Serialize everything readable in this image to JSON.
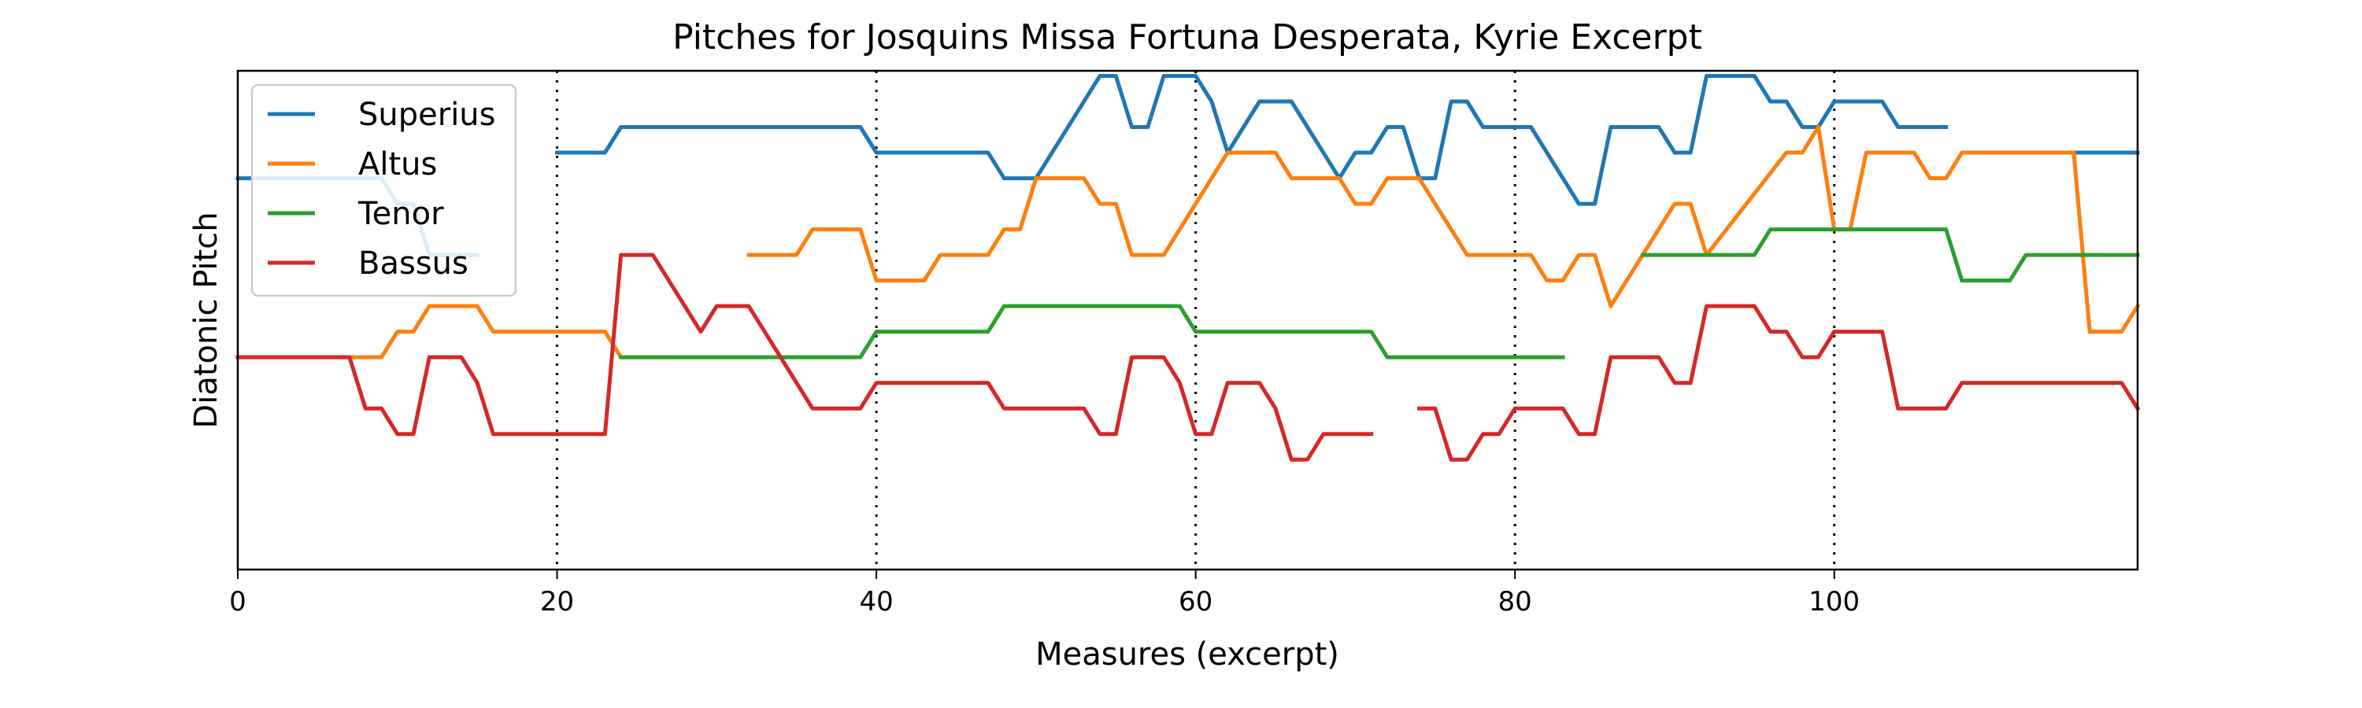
{
  "chart_data": {
    "type": "line",
    "title": "Pitches for Josquins Missa Fortuna Desperata, Kyrie Excerpt",
    "xlabel": "Measures (excerpt)",
    "ylabel": "Diatonic Pitch",
    "xlim": [
      0,
      119
    ],
    "ylim": [
      -6.3,
      13.2
    ],
    "xticks": [
      0,
      20,
      40,
      60,
      80,
      100
    ],
    "yticks_shown": false,
    "vlines": [
      20,
      40,
      60,
      80,
      100
    ],
    "legend": {
      "placement": "top-left",
      "entries": [
        "Superius",
        "Altus",
        "Tenor",
        "Bassus"
      ]
    },
    "series": [
      {
        "name": "Superius",
        "color": "#1f77b4",
        "segments": [
          [
            [
              0,
              9
            ],
            [
              9,
              9
            ],
            [
              10,
              8
            ],
            [
              11,
              8
            ],
            [
              12,
              6
            ],
            [
              15,
              6
            ]
          ],
          [
            [
              20,
              10
            ],
            [
              23,
              10
            ],
            [
              24,
              11
            ],
            [
              39,
              11
            ],
            [
              40,
              10
            ],
            [
              47,
              10
            ],
            [
              48,
              9
            ],
            [
              50,
              9
            ],
            [
              54,
              13
            ],
            [
              55,
              13
            ],
            [
              56,
              11
            ],
            [
              57,
              11
            ],
            [
              58,
              13
            ],
            [
              60,
              13
            ],
            [
              61,
              12
            ],
            [
              62,
              10
            ],
            [
              64,
              12
            ],
            [
              66,
              12
            ],
            [
              69,
              9
            ],
            [
              70,
              10
            ],
            [
              71,
              10
            ],
            [
              72,
              11
            ],
            [
              73,
              11
            ],
            [
              74,
              9
            ],
            [
              75,
              9
            ],
            [
              76,
              12
            ],
            [
              77,
              12
            ],
            [
              78,
              11
            ],
            [
              81,
              11
            ],
            [
              84,
              8
            ],
            [
              85,
              8
            ],
            [
              86,
              11
            ],
            [
              89,
              11
            ],
            [
              90,
              10
            ],
            [
              91,
              10
            ],
            [
              92,
              13
            ],
            [
              95,
              13
            ],
            [
              96,
              12
            ],
            [
              97,
              12
            ],
            [
              98,
              11
            ],
            [
              99,
              11
            ],
            [
              100,
              12
            ],
            [
              103,
              12
            ],
            [
              104,
              11
            ],
            [
              107,
              11
            ]
          ],
          [
            [
              110,
              10
            ],
            [
              119,
              10
            ]
          ]
        ]
      },
      {
        "name": "Altus",
        "color": "#ff7f0e",
        "segments": [
          [
            [
              0,
              2
            ],
            [
              9,
              2
            ],
            [
              10,
              3
            ],
            [
              11,
              3
            ],
            [
              12,
              4
            ],
            [
              15,
              4
            ],
            [
              16,
              3
            ],
            [
              23,
              3
            ],
            [
              24,
              2
            ],
            [
              27,
              2
            ]
          ],
          [
            [
              32,
              6
            ],
            [
              35,
              6
            ],
            [
              36,
              7
            ],
            [
              39,
              7
            ],
            [
              40,
              5
            ],
            [
              43,
              5
            ],
            [
              44,
              6
            ],
            [
              47,
              6
            ],
            [
              48,
              7
            ],
            [
              49,
              7
            ],
            [
              50,
              9
            ],
            [
              53,
              9
            ],
            [
              54,
              8
            ],
            [
              55,
              8
            ],
            [
              56,
              6
            ],
            [
              58,
              6
            ],
            [
              62,
              10
            ],
            [
              65,
              10
            ],
            [
              66,
              9
            ],
            [
              69,
              9
            ],
            [
              70,
              8
            ],
            [
              71,
              8
            ],
            [
              72,
              9
            ],
            [
              74,
              9
            ],
            [
              77,
              6
            ],
            [
              81,
              6
            ],
            [
              82,
              5
            ],
            [
              83,
              5
            ],
            [
              84,
              6
            ],
            [
              85,
              6
            ],
            [
              86,
              4
            ],
            [
              90,
              8
            ],
            [
              91,
              8
            ],
            [
              92,
              6
            ],
            [
              97,
              10
            ],
            [
              98,
              10
            ],
            [
              99,
              11
            ],
            [
              100,
              7
            ],
            [
              101,
              7
            ],
            [
              102,
              10
            ],
            [
              105,
              10
            ],
            [
              106,
              9
            ],
            [
              107,
              9
            ],
            [
              108,
              10
            ],
            [
              115,
              10
            ],
            [
              116,
              3
            ],
            [
              118,
              3
            ],
            [
              119,
              4
            ]
          ]
        ]
      },
      {
        "name": "Tenor",
        "color": "#2ca02c",
        "segments": [
          [
            [
              24,
              2
            ],
            [
              39,
              2
            ],
            [
              40,
              3
            ],
            [
              47,
              3
            ],
            [
              48,
              4
            ],
            [
              59,
              4
            ],
            [
              60,
              3
            ],
            [
              71,
              3
            ],
            [
              72,
              2
            ],
            [
              83,
              2
            ]
          ],
          [
            [
              88,
              6
            ],
            [
              95,
              6
            ],
            [
              96,
              7
            ],
            [
              107,
              7
            ],
            [
              108,
              5
            ],
            [
              111,
              5
            ],
            [
              112,
              6
            ],
            [
              119,
              6
            ]
          ]
        ]
      },
      {
        "name": "Bassus",
        "color": "#d62728",
        "segments": [
          [
            [
              0,
              2
            ],
            [
              7,
              2
            ],
            [
              8,
              0
            ],
            [
              9,
              0
            ],
            [
              10,
              -1
            ],
            [
              11,
              -1
            ],
            [
              12,
              2
            ],
            [
              14,
              2
            ],
            [
              15,
              1
            ],
            [
              16,
              -1
            ],
            [
              23,
              -1
            ],
            [
              24,
              6
            ],
            [
              26,
              6
            ],
            [
              29,
              3
            ],
            [
              30,
              4
            ],
            [
              32,
              4
            ],
            [
              36,
              0
            ],
            [
              39,
              0
            ],
            [
              40,
              1
            ],
            [
              47,
              1
            ],
            [
              48,
              0
            ],
            [
              53,
              0
            ],
            [
              54,
              -1
            ],
            [
              55,
              -1
            ],
            [
              56,
              2
            ],
            [
              58,
              2
            ],
            [
              59,
              1
            ],
            [
              60,
              -1
            ],
            [
              61,
              -1
            ],
            [
              62,
              1
            ],
            [
              64,
              1
            ],
            [
              65,
              0
            ],
            [
              66,
              -2
            ],
            [
              67,
              -2
            ],
            [
              68,
              -1
            ],
            [
              71,
              -1
            ]
          ],
          [
            [
              74,
              0
            ],
            [
              75,
              0
            ],
            [
              76,
              -2
            ],
            [
              77,
              -2
            ],
            [
              78,
              -1
            ],
            [
              79,
              -1
            ],
            [
              80,
              0
            ],
            [
              83,
              0
            ],
            [
              84,
              -1
            ],
            [
              85,
              -1
            ],
            [
              86,
              2
            ],
            [
              89,
              2
            ],
            [
              90,
              1
            ],
            [
              91,
              1
            ],
            [
              92,
              4
            ],
            [
              95,
              4
            ],
            [
              96,
              3
            ],
            [
              97,
              3
            ],
            [
              98,
              2
            ],
            [
              99,
              2
            ],
            [
              100,
              3
            ],
            [
              103,
              3
            ],
            [
              104,
              0
            ],
            [
              107,
              0
            ],
            [
              108,
              1
            ],
            [
              118,
              1
            ],
            [
              119,
              0
            ]
          ]
        ]
      }
    ]
  }
}
